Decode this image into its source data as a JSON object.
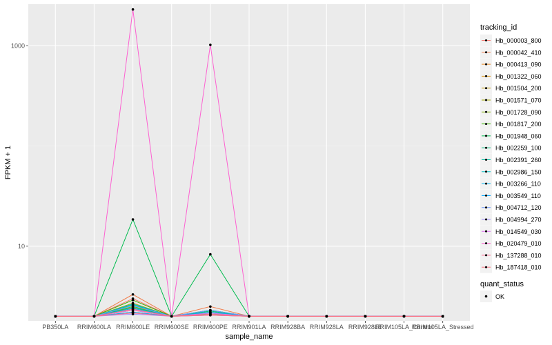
{
  "chart_data": {
    "type": "line",
    "title": "",
    "xlabel": "sample_name",
    "ylabel": "FPKM + 1",
    "y_scale": "log10",
    "ylim": [
      1.8,
      2600
    ],
    "y_ticks": [
      10,
      1000
    ],
    "y_tick_labels": [
      "10",
      "1000"
    ],
    "grid": true,
    "legend_position": "right",
    "categories": [
      "PB350LA",
      "RRIM600LA",
      "RRIM600LE",
      "RRIM600SE",
      "RRIM600PE",
      "RRIM901LA",
      "RRIM928BA",
      "RRIM928LA",
      "RRIM928LE",
      "RRIM105LA_Control",
      "RRIM105LA_Stressed"
    ],
    "legend_title": "tracking_id",
    "shape_legend_title": "quant_status",
    "shape_legend_items": [
      "OK"
    ],
    "series": [
      {
        "name": "Hb_000003_800",
        "color": "#F8766D",
        "values": [
          2,
          2,
          3.0,
          2,
          2.2,
          2,
          2,
          2,
          2,
          2,
          2
        ]
      },
      {
        "name": "Hb_000042_410",
        "color": "#F07E4D",
        "values": [
          2,
          2,
          3.3,
          2,
          2.5,
          2,
          2,
          2,
          2,
          2,
          2
        ]
      },
      {
        "name": "Hb_000413_090",
        "color": "#E7851E",
        "values": [
          2,
          2,
          2.4,
          2,
          2.1,
          2,
          2,
          2,
          2,
          2,
          2
        ]
      },
      {
        "name": "Hb_001322_060",
        "color": "#D58C00",
        "values": [
          2,
          2,
          2.2,
          2,
          2.05,
          2,
          2,
          2,
          2,
          2,
          2
        ]
      },
      {
        "name": "Hb_001504_200",
        "color": "#C19A00",
        "values": [
          2,
          2,
          2.3,
          2,
          2.1,
          2,
          2,
          2,
          2,
          2,
          2
        ]
      },
      {
        "name": "Hb_001571_070",
        "color": "#A3A500",
        "values": [
          2,
          2,
          2.7,
          2,
          2.2,
          2,
          2,
          2,
          2,
          2,
          2
        ]
      },
      {
        "name": "Hb_001728_090",
        "color": "#7CAE00",
        "values": [
          2,
          2,
          2.5,
          2,
          2.15,
          2,
          2,
          2,
          2,
          2,
          2
        ]
      },
      {
        "name": "Hb_001817_200",
        "color": "#39B600",
        "values": [
          2,
          2,
          2.9,
          2,
          2.3,
          2,
          2,
          2,
          2,
          2,
          2
        ]
      },
      {
        "name": "Hb_001948_060",
        "color": "#00BB4E",
        "values": [
          2,
          2,
          18.5,
          2,
          8.3,
          2,
          2,
          2,
          2,
          2,
          2
        ]
      },
      {
        "name": "Hb_002259_100",
        "color": "#00BF7D",
        "values": [
          2,
          2,
          2.45,
          2,
          2.25,
          2,
          2,
          2,
          2,
          2,
          2
        ]
      },
      {
        "name": "Hb_002391_260",
        "color": "#00C1A3",
        "values": [
          2,
          2,
          2.6,
          2,
          2.3,
          2,
          2,
          2,
          2,
          2,
          2
        ]
      },
      {
        "name": "Hb_002986_150",
        "color": "#00BFC4",
        "values": [
          2,
          2,
          2.65,
          2,
          2.15,
          2,
          2,
          2,
          2,
          2,
          2
        ]
      },
      {
        "name": "Hb_003266_110",
        "color": "#00B4EF",
        "values": [
          2,
          2,
          2.4,
          2,
          2.2,
          2,
          2,
          2,
          2,
          2,
          2
        ]
      },
      {
        "name": "Hb_003549_110",
        "color": "#00A5FF",
        "values": [
          2,
          2,
          2.2,
          2,
          2.1,
          2,
          2,
          2,
          2,
          2,
          2
        ]
      },
      {
        "name": "Hb_004712_120",
        "color": "#7099FF",
        "values": [
          2,
          2,
          2.55,
          2,
          2.3,
          2,
          2,
          2,
          2,
          2,
          2
        ]
      },
      {
        "name": "Hb_004994_270",
        "color": "#9F8CFF",
        "values": [
          2,
          2,
          2.1,
          2,
          2.05,
          2,
          2,
          2,
          2,
          2,
          2
        ]
      },
      {
        "name": "Hb_014549_030",
        "color": "#DE72F2",
        "values": [
          2,
          2,
          2.3,
          2,
          2.15,
          2,
          2,
          2,
          2,
          2,
          2
        ]
      },
      {
        "name": "Hb_020479_010",
        "color": "#FD61D1",
        "values": [
          2,
          2,
          2300,
          2,
          1020,
          2,
          2,
          2,
          2,
          2,
          2
        ]
      },
      {
        "name": "Hb_137288_010",
        "color": "#FF6C91",
        "values": [
          2,
          2,
          2.15,
          2,
          2.05,
          2,
          2,
          2,
          2,
          2,
          2
        ]
      },
      {
        "name": "Hb_187418_010",
        "color": "#FA727E",
        "values": [
          2,
          2,
          2.35,
          2,
          2.1,
          2,
          2,
          2,
          2,
          2,
          2
        ]
      }
    ]
  }
}
